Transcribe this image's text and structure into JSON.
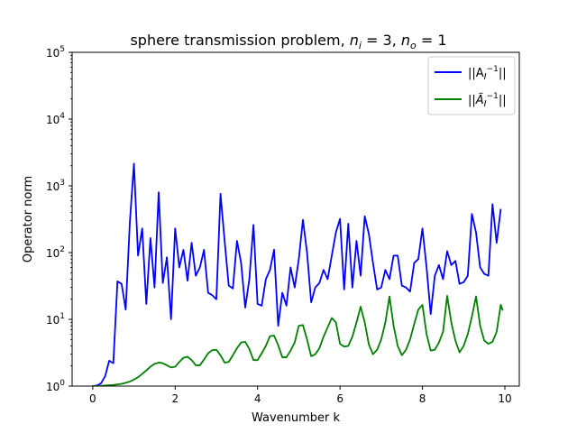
{
  "chart_data": {
    "type": "line",
    "title_main": "sphere transmission problem, ",
    "title_ni": "n",
    "title_ni_sub": "i",
    "title_ni_rest": " = 3, ",
    "title_no": "n",
    "title_no_sub": "o",
    "title_no_rest": " = 1",
    "xlabel": "Wavenumber k",
    "ylabel": "Operator norm",
    "xlim": [
      -0.5,
      10.35
    ],
    "ylim": [
      1,
      100000
    ],
    "yscale": "log",
    "grid": false,
    "legend_position": "top-right",
    "x_ticks": [
      0,
      2,
      4,
      6,
      8,
      10
    ],
    "x_tick_labels": [
      "0",
      "2",
      "4",
      "6",
      "8",
      "10"
    ],
    "y_ticks": [
      1,
      10,
      100,
      1000,
      10000,
      100000
    ],
    "y_tick_base": [
      "10",
      "10",
      "10",
      "10",
      "10",
      "10"
    ],
    "y_tick_exp": [
      "0",
      "1",
      "2",
      "3",
      "4",
      "5"
    ],
    "series": [
      {
        "name": "||A_I^-1||",
        "legend_main": "||A",
        "legend_sub": "I",
        "legend_sup": "−1",
        "legend_end": "||",
        "color": "#0000ff",
        "points": [
          [
            0.0,
            1.0
          ],
          [
            0.1,
            1.02
          ],
          [
            0.2,
            1.1
          ],
          [
            0.3,
            1.4
          ],
          [
            0.4,
            2.4
          ],
          [
            0.5,
            2.2
          ],
          [
            0.6,
            37
          ],
          [
            0.7,
            34
          ],
          [
            0.8,
            14
          ],
          [
            0.9,
            280
          ],
          [
            1.0,
            2150
          ],
          [
            1.1,
            90
          ],
          [
            1.2,
            230
          ],
          [
            1.3,
            17
          ],
          [
            1.4,
            165
          ],
          [
            1.5,
            30
          ],
          [
            1.6,
            800
          ],
          [
            1.7,
            35
          ],
          [
            1.8,
            85
          ],
          [
            1.9,
            10
          ],
          [
            2.0,
            230
          ],
          [
            2.1,
            60
          ],
          [
            2.2,
            110
          ],
          [
            2.3,
            38
          ],
          [
            2.4,
            140
          ],
          [
            2.5,
            45
          ],
          [
            2.6,
            60
          ],
          [
            2.7,
            110
          ],
          [
            2.8,
            25
          ],
          [
            2.9,
            23
          ],
          [
            3.0,
            20
          ],
          [
            3.1,
            760
          ],
          [
            3.2,
            150
          ],
          [
            3.3,
            32
          ],
          [
            3.4,
            29
          ],
          [
            3.5,
            150
          ],
          [
            3.6,
            70
          ],
          [
            3.7,
            15
          ],
          [
            3.8,
            40
          ],
          [
            3.9,
            260
          ],
          [
            4.0,
            17
          ],
          [
            4.1,
            16
          ],
          [
            4.2,
            40
          ],
          [
            4.3,
            55
          ],
          [
            4.4,
            110
          ],
          [
            4.5,
            8
          ],
          [
            4.6,
            25
          ],
          [
            4.7,
            16
          ],
          [
            4.8,
            60
          ],
          [
            4.9,
            30
          ],
          [
            5.0,
            80
          ],
          [
            5.1,
            310
          ],
          [
            5.2,
            100
          ],
          [
            5.3,
            18
          ],
          [
            5.4,
            30
          ],
          [
            5.5,
            35
          ],
          [
            5.6,
            55
          ],
          [
            5.7,
            40
          ],
          [
            5.8,
            90
          ],
          [
            5.9,
            200
          ],
          [
            6.0,
            320
          ],
          [
            6.1,
            28
          ],
          [
            6.2,
            270
          ],
          [
            6.3,
            30
          ],
          [
            6.4,
            150
          ],
          [
            6.5,
            45
          ],
          [
            6.6,
            350
          ],
          [
            6.7,
            190
          ],
          [
            6.8,
            70
          ],
          [
            6.9,
            28
          ],
          [
            7.0,
            30
          ],
          [
            7.1,
            55
          ],
          [
            7.2,
            40
          ],
          [
            7.3,
            90
          ],
          [
            7.4,
            90
          ],
          [
            7.5,
            32
          ],
          [
            7.6,
            30
          ],
          [
            7.7,
            26
          ],
          [
            7.8,
            70
          ],
          [
            7.9,
            80
          ],
          [
            8.0,
            230
          ],
          [
            8.1,
            60
          ],
          [
            8.2,
            12
          ],
          [
            8.3,
            45
          ],
          [
            8.4,
            65
          ],
          [
            8.5,
            40
          ],
          [
            8.6,
            105
          ],
          [
            8.7,
            65
          ],
          [
            8.8,
            75
          ],
          [
            8.9,
            34
          ],
          [
            9.0,
            36
          ],
          [
            9.1,
            45
          ],
          [
            9.2,
            380
          ],
          [
            9.3,
            200
          ],
          [
            9.4,
            60
          ],
          [
            9.5,
            48
          ],
          [
            9.6,
            45
          ],
          [
            9.7,
            530
          ],
          [
            9.8,
            140
          ],
          [
            9.9,
            450
          ]
        ]
      },
      {
        "name": "||Ã_I^-1||",
        "legend_main": "||",
        "legend_tilde": "Ã",
        "legend_sub": "I",
        "legend_sup": "−1",
        "legend_end": "||",
        "color": "#008000",
        "points": [
          [
            0.0,
            1.0
          ],
          [
            0.1,
            1.0
          ],
          [
            0.2,
            1.01
          ],
          [
            0.3,
            1.02
          ],
          [
            0.4,
            1.03
          ],
          [
            0.5,
            1.04
          ],
          [
            0.6,
            1.06
          ],
          [
            0.7,
            1.08
          ],
          [
            0.8,
            1.12
          ],
          [
            0.9,
            1.17
          ],
          [
            1.0,
            1.25
          ],
          [
            1.1,
            1.36
          ],
          [
            1.2,
            1.52
          ],
          [
            1.3,
            1.72
          ],
          [
            1.4,
            1.95
          ],
          [
            1.5,
            2.15
          ],
          [
            1.6,
            2.25
          ],
          [
            1.7,
            2.2
          ],
          [
            1.8,
            2.05
          ],
          [
            1.9,
            1.9
          ],
          [
            2.0,
            1.95
          ],
          [
            2.1,
            2.3
          ],
          [
            2.2,
            2.65
          ],
          [
            2.3,
            2.75
          ],
          [
            2.4,
            2.45
          ],
          [
            2.5,
            2.05
          ],
          [
            2.6,
            2.05
          ],
          [
            2.7,
            2.5
          ],
          [
            2.8,
            3.1
          ],
          [
            2.9,
            3.45
          ],
          [
            3.0,
            3.5
          ],
          [
            3.1,
            2.9
          ],
          [
            3.2,
            2.25
          ],
          [
            3.3,
            2.3
          ],
          [
            3.4,
            2.9
          ],
          [
            3.5,
            3.7
          ],
          [
            3.6,
            4.5
          ],
          [
            3.7,
            4.6
          ],
          [
            3.8,
            3.6
          ],
          [
            3.9,
            2.45
          ],
          [
            4.0,
            2.45
          ],
          [
            4.1,
            3.1
          ],
          [
            4.2,
            4.0
          ],
          [
            4.3,
            5.6
          ],
          [
            4.4,
            5.7
          ],
          [
            4.5,
            4.1
          ],
          [
            4.6,
            2.7
          ],
          [
            4.7,
            2.7
          ],
          [
            4.8,
            3.4
          ],
          [
            4.9,
            4.5
          ],
          [
            5.0,
            8.0
          ],
          [
            5.1,
            8.2
          ],
          [
            5.2,
            5.0
          ],
          [
            5.3,
            2.8
          ],
          [
            5.4,
            3.0
          ],
          [
            5.5,
            3.7
          ],
          [
            5.6,
            5.5
          ],
          [
            5.7,
            7.6
          ],
          [
            5.8,
            10.5
          ],
          [
            5.9,
            9.0
          ],
          [
            6.0,
            4.3
          ],
          [
            6.1,
            3.9
          ],
          [
            6.2,
            4.0
          ],
          [
            6.3,
            5.5
          ],
          [
            6.4,
            9.0
          ],
          [
            6.5,
            15.5
          ],
          [
            6.6,
            9.0
          ],
          [
            6.7,
            4.2
          ],
          [
            6.8,
            3.0
          ],
          [
            6.9,
            3.5
          ],
          [
            7.0,
            5.0
          ],
          [
            7.1,
            9.0
          ],
          [
            7.2,
            22.0
          ],
          [
            7.3,
            8.0
          ],
          [
            7.4,
            4.0
          ],
          [
            7.5,
            2.9
          ],
          [
            7.6,
            3.5
          ],
          [
            7.7,
            5.0
          ],
          [
            7.8,
            8.5
          ],
          [
            7.9,
            14.0
          ],
          [
            8.0,
            16.5
          ],
          [
            8.1,
            6.0
          ],
          [
            8.2,
            3.4
          ],
          [
            8.3,
            3.5
          ],
          [
            8.4,
            4.5
          ],
          [
            8.5,
            6.5
          ],
          [
            8.6,
            22.5
          ],
          [
            8.7,
            9.0
          ],
          [
            8.8,
            4.8
          ],
          [
            8.9,
            3.2
          ],
          [
            9.0,
            4.0
          ],
          [
            9.1,
            6.0
          ],
          [
            9.2,
            11.0
          ],
          [
            9.3,
            22.0
          ],
          [
            9.4,
            8.0
          ],
          [
            9.5,
            4.8
          ],
          [
            9.6,
            4.3
          ],
          [
            9.7,
            4.6
          ],
          [
            9.8,
            6.5
          ],
          [
            9.9,
            16.5
          ],
          [
            9.95,
            13.5
          ]
        ]
      }
    ]
  }
}
